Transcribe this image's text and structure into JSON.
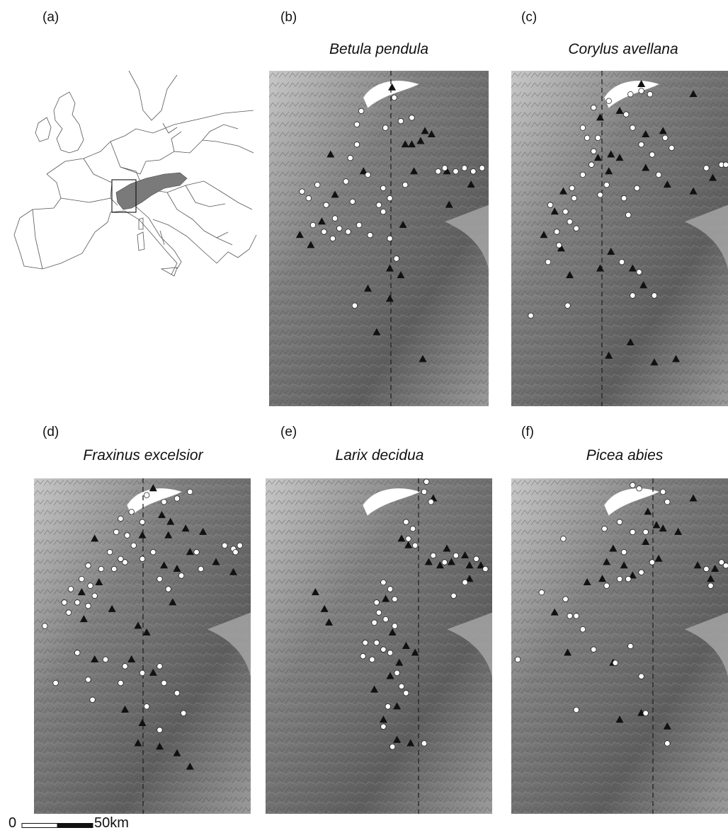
{
  "panel_a": {
    "letter": "(a)"
  },
  "panels": [
    {
      "letter": "(b)",
      "species": "Betula pendula"
    },
    {
      "letter": "(c)",
      "species": "Corylus avellana"
    },
    {
      "letter": "(d)",
      "species": "Fraxinus excelsior"
    },
    {
      "letter": "(e)",
      "species": "Larix decidua"
    },
    {
      "letter": "(f)",
      "species": "Picea abies"
    }
  ],
  "scale_bar": {
    "zero": "0",
    "label": "50km"
  },
  "colors": {
    "relief_light": "#c9c9c9",
    "relief_dark": "#5e5e5e",
    "lake": "#ffffff",
    "triangle_marker": "#111111",
    "circle_marker": "#ffffff",
    "highlighted_region": "#7a7a7a"
  },
  "legend_symbols": [
    "triangle",
    "circle"
  ]
}
